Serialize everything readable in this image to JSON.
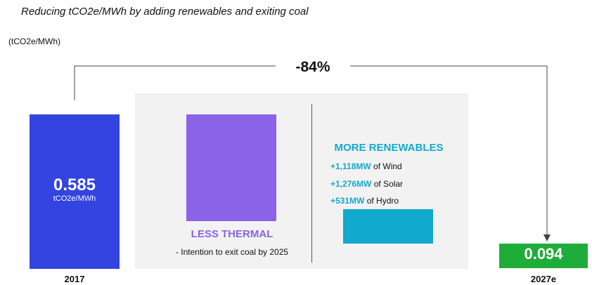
{
  "subtitle": "Reducing tCO2e/MWh by adding renewables and exiting coal",
  "unit_label": "(tCO2e/MWh)",
  "colors": {
    "base_bar": "#3344e0",
    "target_bar": "#1fad3a",
    "thermal": "#8a63e8",
    "renewables": "#12a9cf",
    "connector": "#444444"
  },
  "chart_data": {
    "type": "bar",
    "categories": [
      "2017",
      "2027e"
    ],
    "values": [
      0.585,
      0.094
    ],
    "value_labels": [
      "0.585",
      "0.094"
    ],
    "value_unit": "tCO2e/MWh",
    "change_label": "-84%",
    "ylim": [
      0,
      0.585
    ]
  },
  "thermal": {
    "title": "LESS THERMAL",
    "note": "- Intention to exit coal by 2025"
  },
  "renewables": {
    "title": "MORE RENEWABLES",
    "items": [
      {
        "amount": "+1,118MW",
        "text": " of Wind"
      },
      {
        "amount": "+1,276MW",
        "text": " of Solar"
      },
      {
        "amount": "+531MW",
        "text": " of Hydro"
      }
    ]
  }
}
